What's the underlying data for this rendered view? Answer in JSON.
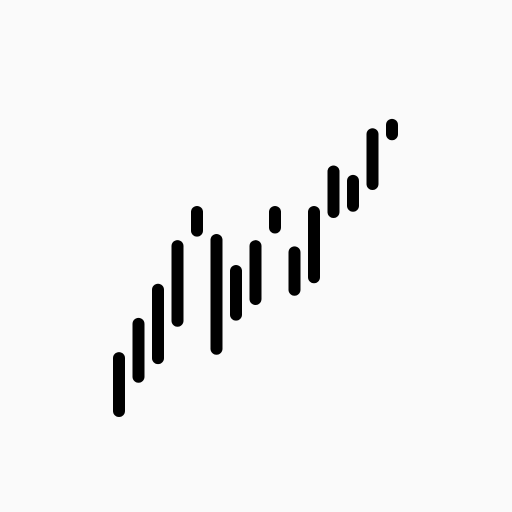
{
  "icon": {
    "name": "candlestick-chart-icon",
    "color": "#000000",
    "background": "#fafafa",
    "bars": [
      {
        "low": 0.0,
        "high": 0.17
      },
      {
        "low": 0.11,
        "high": 0.28
      },
      {
        "low": 0.17,
        "high": 0.39
      },
      {
        "low": 0.29,
        "high": 0.53
      },
      {
        "low": 0.58,
        "high": 0.64
      },
      {
        "low": 0.2,
        "high": 0.55
      },
      {
        "low": 0.31,
        "high": 0.45
      },
      {
        "low": 0.36,
        "high": 0.53
      },
      {
        "low": 0.59,
        "high": 0.64
      },
      {
        "low": 0.39,
        "high": 0.51
      },
      {
        "low": 0.43,
        "high": 0.64
      },
      {
        "low": 0.64,
        "high": 0.77
      },
      {
        "low": 0.66,
        "high": 0.74
      },
      {
        "low": 0.73,
        "high": 0.89
      },
      {
        "low": 0.89,
        "high": 0.92
      }
    ]
  }
}
